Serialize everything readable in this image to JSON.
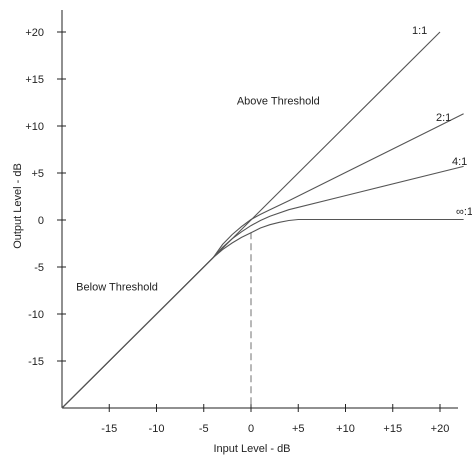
{
  "chart_data": {
    "type": "line",
    "title": "",
    "xlabel": "Input Level - dB",
    "ylabel": "Output Level - dB",
    "xlim": [
      -20,
      22
    ],
    "ylim": [
      -20,
      22
    ],
    "x_ticks": [
      {
        "value": -15,
        "label": "-15"
      },
      {
        "value": -10,
        "label": "-10"
      },
      {
        "value": -5,
        "label": "-5"
      },
      {
        "value": 0,
        "label": "0"
      },
      {
        "value": 5,
        "label": "+5"
      },
      {
        "value": 10,
        "label": "+10"
      },
      {
        "value": 15,
        "label": "+15"
      },
      {
        "value": 20,
        "label": "+20"
      }
    ],
    "y_ticks": [
      {
        "value": 20,
        "label": "+20"
      },
      {
        "value": 15,
        "label": "+15"
      },
      {
        "value": 10,
        "label": "+10"
      },
      {
        "value": 5,
        "label": "+5"
      },
      {
        "value": 0,
        "label": "0"
      },
      {
        "value": -5,
        "label": "-5"
      },
      {
        "value": -10,
        "label": "-10"
      },
      {
        "value": -15,
        "label": "-15"
      }
    ],
    "threshold_x": 0,
    "series": [
      {
        "name": "1:1",
        "points": [
          [
            -20,
            -20
          ],
          [
            20,
            20
          ]
        ]
      },
      {
        "name": "2:1",
        "points": [
          [
            -20,
            -20
          ],
          [
            -4,
            -4
          ],
          [
            -3,
            -2.6
          ],
          [
            -2,
            -1.55
          ],
          [
            -1,
            -0.7
          ],
          [
            0,
            0.05
          ],
          [
            1,
            0.6
          ],
          [
            2,
            1.1
          ],
          [
            4,
            2.05
          ],
          [
            10,
            5.05
          ],
          [
            22.5,
            11.3
          ]
        ]
      },
      {
        "name": "4:1",
        "points": [
          [
            -20,
            -20
          ],
          [
            -4,
            -4
          ],
          [
            -3,
            -2.9
          ],
          [
            -2,
            -2.0
          ],
          [
            -1,
            -1.25
          ],
          [
            0,
            -0.6
          ],
          [
            1,
            -0.05
          ],
          [
            2,
            0.4
          ],
          [
            4,
            1.1
          ],
          [
            10,
            2.6
          ],
          [
            22.5,
            5.7
          ]
        ]
      },
      {
        "name": "∞:1",
        "points": [
          [
            -20,
            -20
          ],
          [
            -4,
            -4
          ],
          [
            -3,
            -3.15
          ],
          [
            -2,
            -2.45
          ],
          [
            -1,
            -1.85
          ],
          [
            0,
            -1.35
          ],
          [
            1,
            -0.85
          ],
          [
            2,
            -0.5
          ],
          [
            3,
            -0.25
          ],
          [
            4,
            -0.05
          ],
          [
            5,
            0.05
          ],
          [
            6,
            0.05
          ],
          [
            22.5,
            0.05
          ]
        ]
      }
    ],
    "annotations": [
      {
        "text": "Above Threshold",
        "x": -1.5,
        "y": 12.3
      },
      {
        "text": "Below Threshold",
        "x": -18.5,
        "y": -7.5
      }
    ],
    "grid": false,
    "legend": "none"
  }
}
